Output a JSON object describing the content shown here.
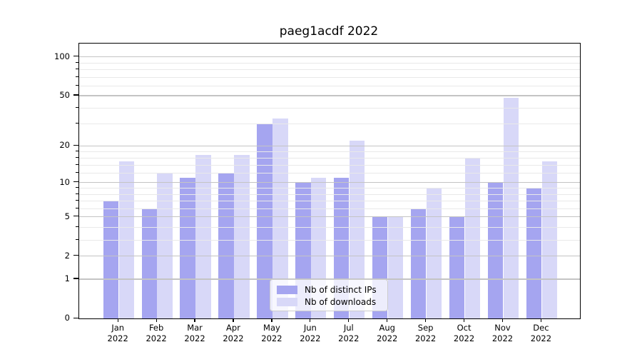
{
  "title": "paeg1acdf 2022",
  "chart_data": {
    "type": "bar",
    "categories": [
      "Jan 2022",
      "Feb 2022",
      "Mar 2022",
      "Apr 2022",
      "May 2022",
      "Jun 2022",
      "Jul 2022",
      "Aug 2022",
      "Sep 2022",
      "Oct 2022",
      "Nov 2022",
      "Dec 2022"
    ],
    "series": [
      {
        "name": "Nb of distinct IPs",
        "color": "#a5a5f0",
        "values": [
          7,
          6,
          11,
          12,
          30,
          10,
          11,
          5,
          6,
          5,
          10,
          9
        ]
      },
      {
        "name": "Nb of downloads",
        "color": "#d8d8f8",
        "values": [
          15,
          12,
          17,
          17,
          33,
          11,
          22,
          5,
          9,
          16,
          48,
          15
        ]
      }
    ],
    "yscale": "log10(1+y)",
    "ylim": [
      0,
      127
    ],
    "y_major_ticks": [
      0,
      1,
      2,
      5,
      10,
      20,
      50,
      100
    ],
    "y_minor_ticks": [
      3,
      4,
      6,
      7,
      8,
      9,
      12,
      14,
      16,
      18,
      30,
      40,
      60,
      70,
      80,
      90
    ],
    "grid": "on",
    "legend_position": "lower center"
  },
  "legend": {
    "item1": "Nb of distinct IPs",
    "item2": "Nb of downloads"
  },
  "colors": {
    "bar_distinct_ips": "#a5a5f0",
    "bar_downloads": "#d8d8f8",
    "grid_major": "#c4c4c4",
    "grid_minor": "#e9e9e9",
    "axis": "#000000",
    "text": "#000000"
  }
}
